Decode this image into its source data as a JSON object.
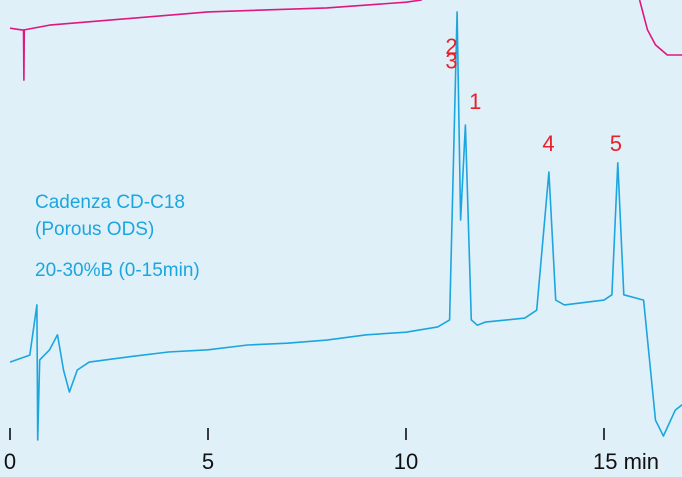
{
  "chart_data": {
    "type": "line",
    "xlim": [
      0,
      16.97
    ],
    "xticks": [
      0,
      5,
      10,
      {
        "value": 15,
        "label": "15 min"
      }
    ],
    "ylim": [
      0,
      100
    ],
    "grid": false,
    "series": [
      {
        "name": "Cadenza CD-C18",
        "color": "#1ba6e0",
        "x": [
          0,
          0.5,
          0.68,
          0.7,
          0.75,
          1.0,
          1.2,
          1.35,
          1.5,
          1.7,
          2,
          3,
          4,
          5,
          6,
          7,
          8,
          9,
          10,
          10.8,
          11.1,
          11.29,
          11.38,
          11.5,
          11.65,
          11.8,
          12,
          13,
          13.3,
          13.61,
          13.78,
          14,
          15,
          15.2,
          15.35,
          15.5,
          16,
          16.3,
          16.5,
          16.8,
          16.97
        ],
        "values": [
          17.7,
          19.3,
          30.7,
          0,
          18.2,
          20.5,
          23.9,
          15.9,
          10.9,
          15.9,
          17.7,
          18.9,
          20,
          20.5,
          21.6,
          22,
          22.7,
          23.9,
          24.5,
          25.7,
          27.3,
          97.3,
          50,
          71.6,
          27.3,
          26.1,
          26.8,
          27.7,
          29.5,
          60.9,
          31.8,
          30.7,
          31.8,
          33,
          63,
          33,
          31.8,
          4.5,
          0.9,
          6.8,
          8
        ]
      },
      {
        "color": "#e0177f",
        "x": [
          0,
          0.3,
          0.34,
          0.35,
          0.36,
          1,
          5,
          8,
          10,
          10.4,
          13,
          15.9,
          16.1,
          16.3,
          16.6,
          16.97
        ],
        "values": [
          93.6,
          93.2,
          93.2,
          81.8,
          93.2,
          94.3,
          97.3,
          98.2,
          99.5,
          100,
          null,
          100,
          93.2,
          89.8,
          87.5,
          87.5
        ]
      }
    ],
    "peak_labels": [
      {
        "text": "2",
        "x": 11.15,
        "y": 89
      },
      {
        "text": "3",
        "x": 11.15,
        "y": 85.8
      },
      {
        "text": "1",
        "x": 11.75,
        "y": 76.6
      },
      {
        "text": "4",
        "x": 13.6,
        "y": 67
      },
      {
        "text": "5",
        "x": 15.3,
        "y": 67
      }
    ],
    "annotations": [
      "(Porous ODS)",
      "20-30%B (0-15min)"
    ]
  }
}
